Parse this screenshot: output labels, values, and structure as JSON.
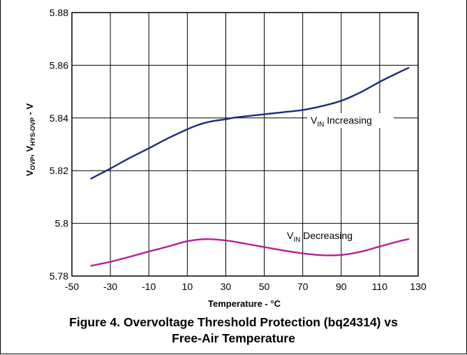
{
  "chart_data": {
    "type": "line",
    "title": "",
    "xlabel": "Temperature - °C",
    "ylabel_parts": {
      "v1": "V",
      "s1": "OVP",
      "sep": ", ",
      "v2": "V",
      "s2": "HYS-OVP",
      "tail": " - V"
    },
    "xlim": [
      -50,
      130
    ],
    "ylim": [
      5.78,
      5.88
    ],
    "x_ticks": [
      -50,
      -30,
      -10,
      10,
      30,
      50,
      70,
      90,
      110,
      130
    ],
    "x_tick_labels": [
      "-50",
      "-30",
      "-10",
      "10",
      "30",
      "50",
      "70",
      "90",
      "110",
      "130"
    ],
    "y_ticks": [
      5.78,
      5.8,
      5.82,
      5.84,
      5.86,
      5.88
    ],
    "y_tick_labels": [
      "5.78",
      "5.8",
      "5.82",
      "5.84",
      "5.86",
      "5.88"
    ],
    "grid": true,
    "series": [
      {
        "key": "increasing",
        "color": "#1f2a80",
        "x": [
          -40,
          -30,
          -20,
          -10,
          0,
          10,
          15,
          20,
          25,
          30,
          35,
          40,
          50,
          60,
          70,
          80,
          90,
          100,
          110,
          120,
          125
        ],
        "y": [
          5.817,
          5.8208,
          5.8248,
          5.8285,
          5.8323,
          5.8357,
          5.8372,
          5.8383,
          5.839,
          5.8395,
          5.8402,
          5.8406,
          5.8414,
          5.8422,
          5.843,
          5.8445,
          5.8465,
          5.8497,
          5.8537,
          5.8573,
          5.859
        ]
      },
      {
        "key": "decreasing",
        "color": "#b51e92",
        "x": [
          -40,
          -30,
          -20,
          -10,
          0,
          10,
          20,
          30,
          40,
          50,
          60,
          70,
          80,
          90,
          100,
          110,
          120,
          125
        ],
        "y": [
          5.7839,
          5.7854,
          5.7873,
          5.7893,
          5.7912,
          5.7932,
          5.794,
          5.7935,
          5.7923,
          5.791,
          5.7897,
          5.7886,
          5.7879,
          5.788,
          5.7892,
          5.7912,
          5.7932,
          5.794
        ]
      }
    ],
    "annotations": [
      {
        "key": "increasing",
        "v": "V",
        "sub": "IN",
        "rest": " Increasing"
      },
      {
        "key": "decreasing",
        "v": "V",
        "sub": "IN",
        "rest": " Decreasing"
      }
    ]
  },
  "caption": {
    "line1": "Figure 4. Overvoltage Threshold Protection (bq24314) vs",
    "line2": "Free-Air Temperature"
  }
}
